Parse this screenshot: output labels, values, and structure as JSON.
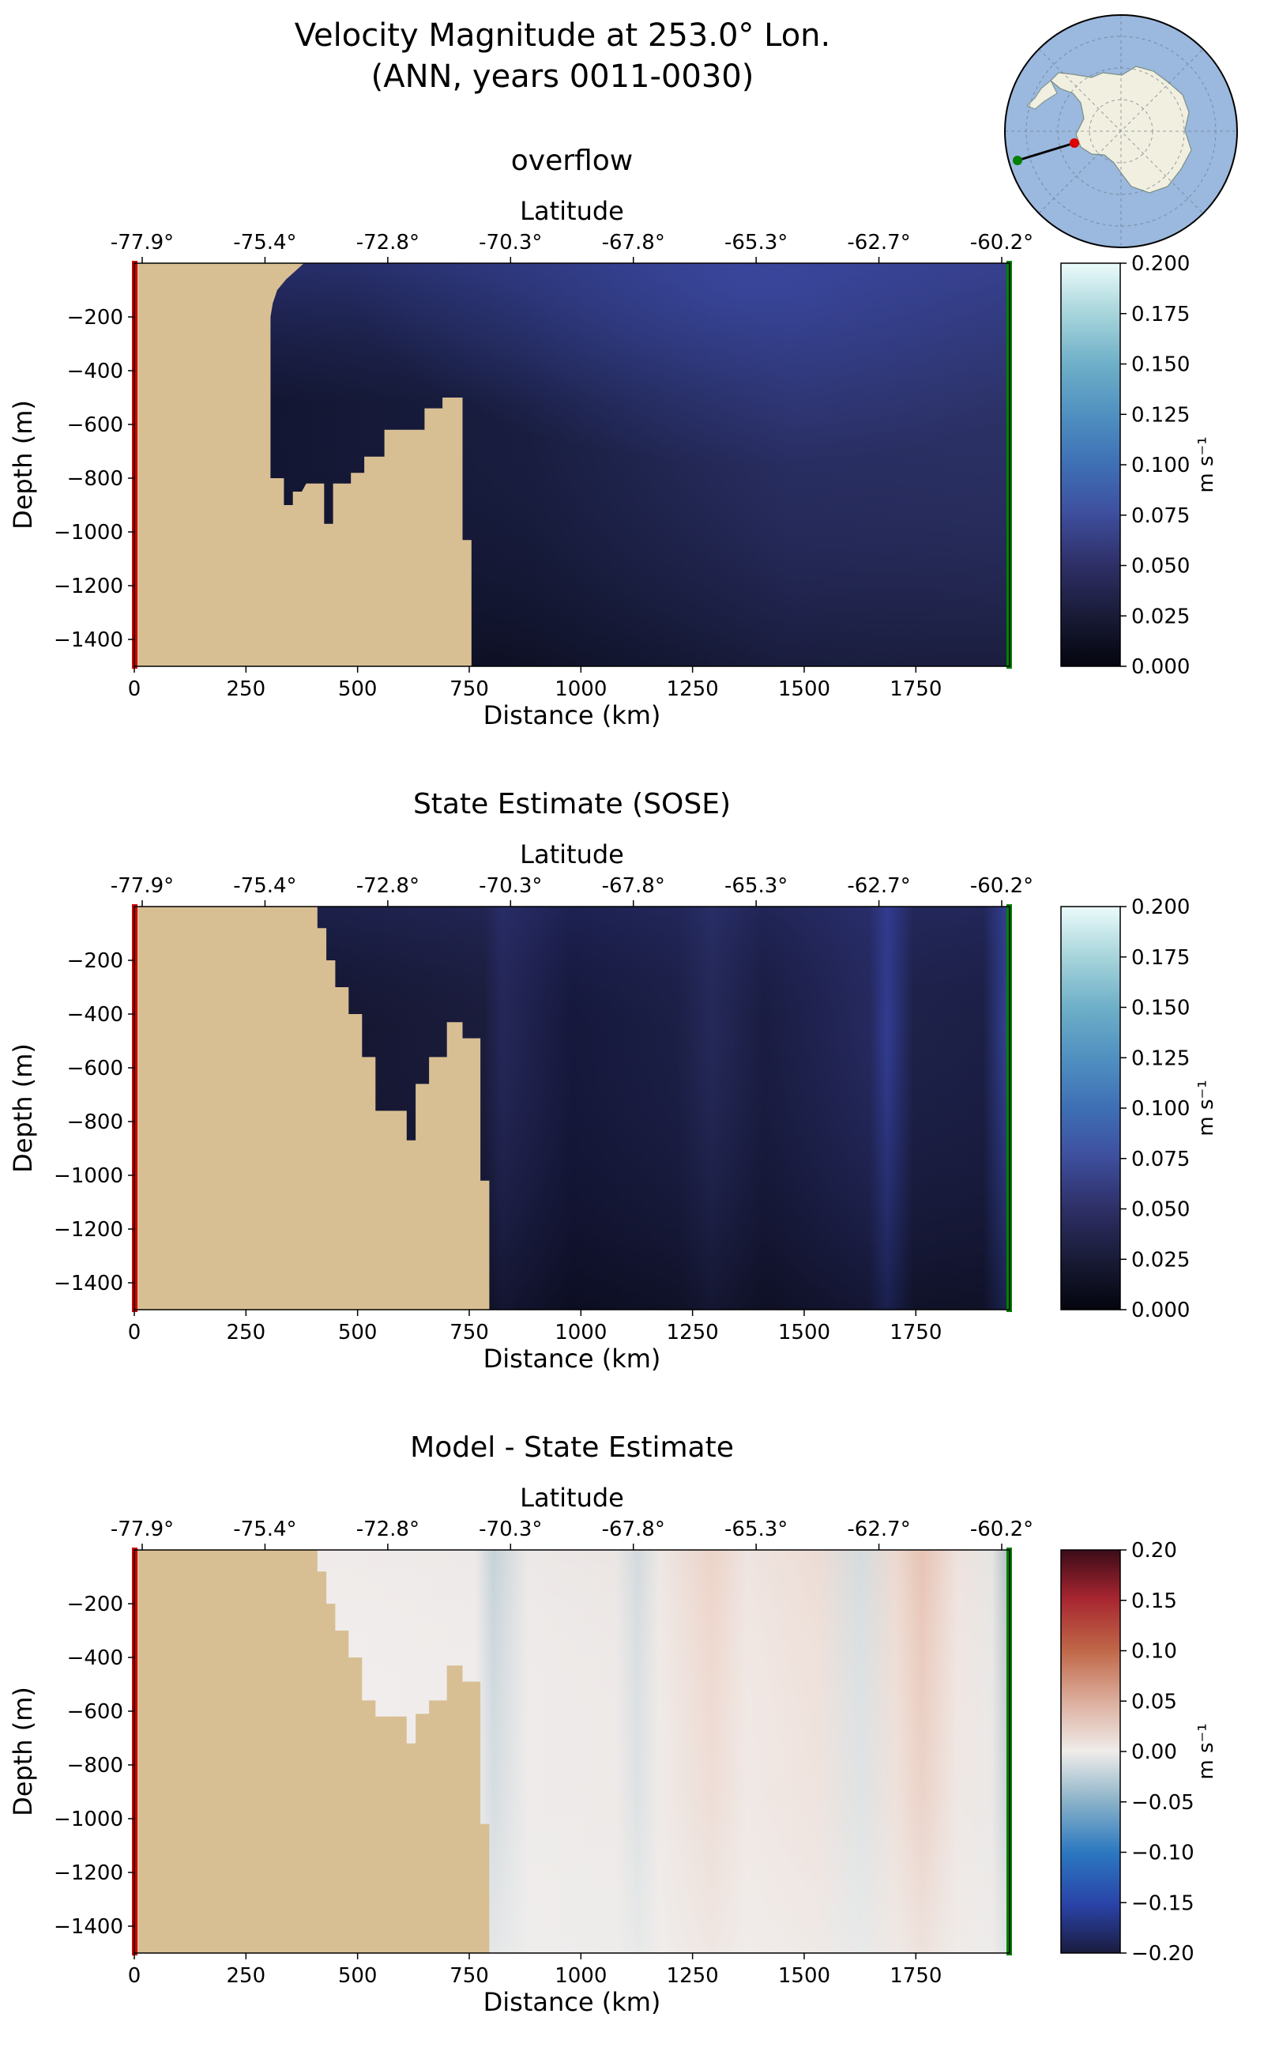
{
  "figure": {
    "title_line1": "Velocity Magnitude at 253.0° Lon.",
    "title_line2": "(ANN, years 0011-0030)"
  },
  "colors": {
    "land": "#d8bf93",
    "left_marker": "#cc0000",
    "right_marker": "#008000",
    "globe_ocean": "#9bb8de",
    "globe_land": "#f1efdf"
  },
  "inset_map": {
    "icon": "antarctica-polar-projection-icon",
    "section_start_marker": "red",
    "section_end_marker": "green"
  },
  "chart_data": [
    {
      "type": "heatmap",
      "title": "overflow",
      "xlabel": "Distance (km)",
      "ylabel": "Depth (m)",
      "top_axis_label": "Latitude",
      "x_ticks": [
        0,
        250,
        500,
        750,
        1000,
        1250,
        1500,
        1750
      ],
      "x_tick_labels": [
        "0",
        "250",
        "500",
        "750",
        "1000",
        "1250",
        "1500",
        "1750"
      ],
      "y_ticks": [
        -200,
        -400,
        -600,
        -800,
        -1000,
        -1200,
        -1400
      ],
      "y_tick_labels": [
        "−200",
        "−400",
        "−600",
        "−800",
        "−1000",
        "−1200",
        "−1400"
      ],
      "latitude_tick_labels": [
        "-77.9°",
        "-75.4°",
        "-72.8°",
        "-70.3°",
        "-67.8°",
        "-65.3°",
        "-62.7°",
        "-60.2°"
      ],
      "xlim": [
        0,
        1960
      ],
      "ylim": [
        -1500,
        0
      ],
      "colorbar": {
        "label": "m s⁻¹",
        "range": [
          0.0,
          0.2
        ],
        "ticks": [
          "0.200",
          "0.175",
          "0.150",
          "0.125",
          "0.100",
          "0.075",
          "0.050",
          "0.025",
          "0.000"
        ],
        "colormap": "ice"
      },
      "bathymetry_profile": [
        [
          0,
          0
        ],
        [
          300,
          -180
        ],
        [
          360,
          -60
        ],
        [
          400,
          0
        ]
      ],
      "seafloor_note_km": 755
    },
    {
      "type": "heatmap",
      "title": "State Estimate (SOSE)",
      "xlabel": "Distance (km)",
      "ylabel": "Depth (m)",
      "top_axis_label": "Latitude",
      "x_ticks": [
        0,
        250,
        500,
        750,
        1000,
        1250,
        1500,
        1750
      ],
      "x_tick_labels": [
        "0",
        "250",
        "500",
        "750",
        "1000",
        "1250",
        "1500",
        "1750"
      ],
      "y_ticks": [
        -200,
        -400,
        -600,
        -800,
        -1000,
        -1200,
        -1400
      ],
      "y_tick_labels": [
        "−200",
        "−400",
        "−600",
        "−800",
        "−1000",
        "−1200",
        "−1400"
      ],
      "latitude_tick_labels": [
        "-77.9°",
        "-75.4°",
        "-72.8°",
        "-70.3°",
        "-67.8°",
        "-65.3°",
        "-62.7°",
        "-60.2°"
      ],
      "xlim": [
        0,
        1960
      ],
      "ylim": [
        -1500,
        0
      ],
      "colorbar": {
        "label": "m s⁻¹",
        "range": [
          0.0,
          0.2
        ],
        "ticks": [
          "0.200",
          "0.175",
          "0.150",
          "0.125",
          "0.100",
          "0.075",
          "0.050",
          "0.025",
          "0.000"
        ],
        "colormap": "ice"
      }
    },
    {
      "type": "heatmap",
      "title": "Model - State Estimate",
      "xlabel": "Distance (km)",
      "ylabel": "Depth (m)",
      "top_axis_label": "Latitude",
      "x_ticks": [
        0,
        250,
        500,
        750,
        1000,
        1250,
        1500,
        1750
      ],
      "x_tick_labels": [
        "0",
        "250",
        "500",
        "750",
        "1000",
        "1250",
        "1500",
        "1750"
      ],
      "y_ticks": [
        -200,
        -400,
        -600,
        -800,
        -1000,
        -1200,
        -1400
      ],
      "y_tick_labels": [
        "−200",
        "−400",
        "−600",
        "−800",
        "−1000",
        "−1200",
        "−1400"
      ],
      "latitude_tick_labels": [
        "-77.9°",
        "-75.4°",
        "-72.8°",
        "-70.3°",
        "-67.8°",
        "-65.3°",
        "-62.7°",
        "-60.2°"
      ],
      "xlim": [
        0,
        1960
      ],
      "ylim": [
        -1500,
        0
      ],
      "colorbar": {
        "label": "m s⁻¹",
        "range": [
          -0.2,
          0.2
        ],
        "ticks": [
          "0.20",
          "0.15",
          "0.10",
          "0.05",
          "0.00",
          "−0.05",
          "−0.10",
          "−0.15",
          "−0.20"
        ],
        "colormap": "balance"
      }
    }
  ]
}
